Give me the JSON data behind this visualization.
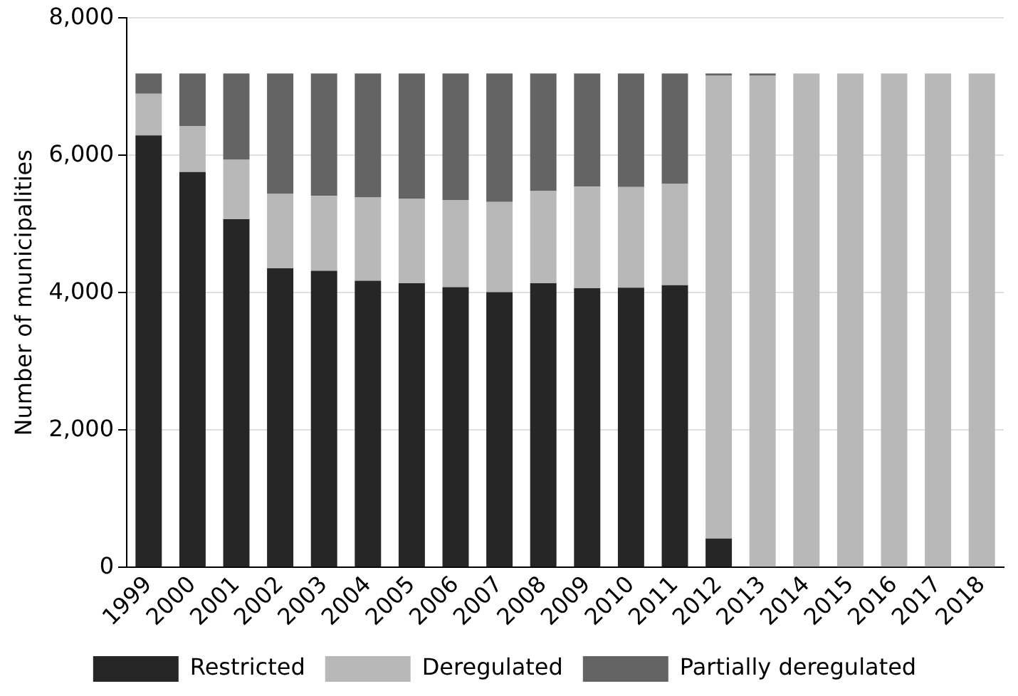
{
  "chart_data": {
    "type": "bar",
    "stacked": true,
    "ylabel": "Number of municipalities",
    "categories": [
      "1999",
      "2000",
      "2001",
      "2002",
      "2003",
      "2004",
      "2005",
      "2006",
      "2007",
      "2008",
      "2009",
      "2010",
      "2011",
      "2012",
      "2013",
      "2014",
      "2015",
      "2016",
      "2017",
      "2018"
    ],
    "series": [
      {
        "name": "Restricted",
        "color": "#262626",
        "values": [
          6290,
          5755,
          5069,
          4354,
          4318,
          4173,
          4137,
          4079,
          4007,
          4137,
          4065,
          4072,
          4108,
          419,
          0,
          0,
          0,
          0,
          0,
          0
        ]
      },
      {
        "name": "Deregulated",
        "color": "#b8b8b8",
        "values": [
          605,
          671,
          866,
          1083,
          1090,
          1213,
          1228,
          1271,
          1314,
          1343,
          1480,
          1466,
          1480,
          6743,
          7162,
          7190,
          7190,
          7190,
          7190,
          7190
        ]
      },
      {
        "name": "Partially deregulated",
        "color": "#646464",
        "values": [
          295,
          764,
          1255,
          1753,
          1782,
          1804,
          1825,
          1840,
          1869,
          1710,
          1645,
          1652,
          1602,
          28,
          28,
          0,
          0,
          0,
          0,
          0
        ]
      }
    ],
    "ylim": [
      0,
      8000
    ],
    "yticks": [
      {
        "value": 0,
        "label": "0"
      },
      {
        "value": 2000,
        "label": "2,000"
      },
      {
        "value": 4000,
        "label": "4,000"
      },
      {
        "value": 6000,
        "label": "6,000"
      },
      {
        "value": 8000,
        "label": "8,000"
      }
    ],
    "grid": "y",
    "legend": "bottom"
  }
}
